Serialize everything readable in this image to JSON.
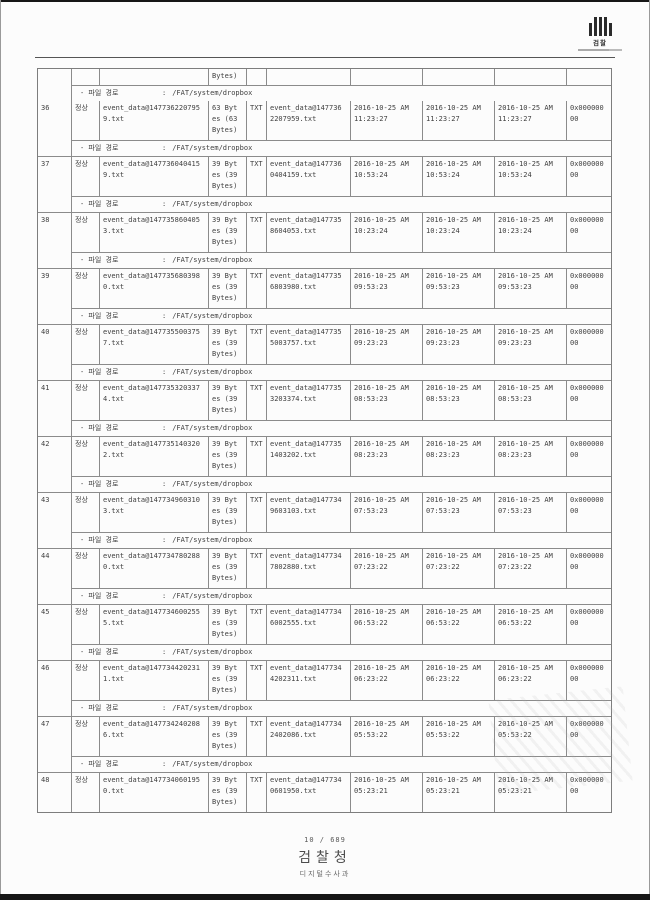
{
  "page": {
    "logo": {
      "label": "검찰"
    },
    "footer": {
      "page_number": "10 / 689",
      "organization": "검찰청",
      "department": "디지털수사과"
    }
  },
  "table": {
    "path_label": "- 파일 경로",
    "path_separator": ":",
    "continuation": {
      "size_fragment": "Bytes)",
      "path": "/FAT/system/dropbox"
    },
    "rows": [
      {
        "no": "36",
        "status": "정상",
        "file_name": "event_data@1477362207959.txt",
        "size": "63 Bytes (63 Bytes)",
        "type": "TXT",
        "original_name": "event_data@1477362207959.txt",
        "timestamp1": "2016-10-25 AM 11:23:27",
        "timestamp2": "2016-10-25 AM 11:23:27",
        "timestamp3": "2016-10-25 AM 11:23:27",
        "attribute": "0x00000000",
        "path": "/FAT/system/dropbox"
      },
      {
        "no": "37",
        "status": "정상",
        "file_name": "event_data@1477360404159.txt",
        "size": "39 Bytes (39 Bytes)",
        "type": "TXT",
        "original_name": "event_data@1477360404159.txt",
        "timestamp1": "2016-10-25 AM 10:53:24",
        "timestamp2": "2016-10-25 AM 10:53:24",
        "timestamp3": "2016-10-25 AM 10:53:24",
        "attribute": "0x00000000",
        "path": "/FAT/system/dropbox"
      },
      {
        "no": "38",
        "status": "정상",
        "file_name": "event_data@1477358604053.txt",
        "size": "39 Bytes (39 Bytes)",
        "type": "TXT",
        "original_name": "event_data@1477358604053.txt",
        "timestamp1": "2016-10-25 AM 10:23:24",
        "timestamp2": "2016-10-25 AM 10:23:24",
        "timestamp3": "2016-10-25 AM 10:23:24",
        "attribute": "0x00000000",
        "path": "/FAT/system/dropbox"
      },
      {
        "no": "39",
        "status": "정상",
        "file_name": "event_data@1477356803980.txt",
        "size": "39 Bytes (39 Bytes)",
        "type": "TXT",
        "original_name": "event_data@1477356803980.txt",
        "timestamp1": "2016-10-25 AM 09:53:23",
        "timestamp2": "2016-10-25 AM 09:53:23",
        "timestamp3": "2016-10-25 AM 09:53:23",
        "attribute": "0x00000000",
        "path": "/FAT/system/dropbox"
      },
      {
        "no": "40",
        "status": "정상",
        "file_name": "event_data@1477355003757.txt",
        "size": "39 Bytes (39 Bytes)",
        "type": "TXT",
        "original_name": "event_data@1477355003757.txt",
        "timestamp1": "2016-10-25 AM 09:23:23",
        "timestamp2": "2016-10-25 AM 09:23:23",
        "timestamp3": "2016-10-25 AM 09:23:23",
        "attribute": "0x00000000",
        "path": "/FAT/system/dropbox"
      },
      {
        "no": "41",
        "status": "정상",
        "file_name": "event_data@1477353203374.txt",
        "size": "39 Bytes (39 Bytes)",
        "type": "TXT",
        "original_name": "event_data@1477353203374.txt",
        "timestamp1": "2016-10-25 AM 08:53:23",
        "timestamp2": "2016-10-25 AM 08:53:23",
        "timestamp3": "2016-10-25 AM 08:53:23",
        "attribute": "0x00000000",
        "path": "/FAT/system/dropbox"
      },
      {
        "no": "42",
        "status": "정상",
        "file_name": "event_data@1477351403202.txt",
        "size": "39 Bytes (39 Bytes)",
        "type": "TXT",
        "original_name": "event_data@1477351403202.txt",
        "timestamp1": "2016-10-25 AM 08:23:23",
        "timestamp2": "2016-10-25 AM 08:23:23",
        "timestamp3": "2016-10-25 AM 08:23:23",
        "attribute": "0x00000000",
        "path": "/FAT/system/dropbox"
      },
      {
        "no": "43",
        "status": "정상",
        "file_name": "event_data@1477349603103.txt",
        "size": "39 Bytes (39 Bytes)",
        "type": "TXT",
        "original_name": "event_data@1477349603103.txt",
        "timestamp1": "2016-10-25 AM 07:53:23",
        "timestamp2": "2016-10-25 AM 07:53:23",
        "timestamp3": "2016-10-25 AM 07:53:23",
        "attribute": "0x00000000",
        "path": "/FAT/system/dropbox"
      },
      {
        "no": "44",
        "status": "정상",
        "file_name": "event_data@1477347802880.txt",
        "size": "39 Bytes (39 Bytes)",
        "type": "TXT",
        "original_name": "event_data@1477347802880.txt",
        "timestamp1": "2016-10-25 AM 07:23:22",
        "timestamp2": "2016-10-25 AM 07:23:22",
        "timestamp3": "2016-10-25 AM 07:23:22",
        "attribute": "0x00000000",
        "path": "/FAT/system/dropbox"
      },
      {
        "no": "45",
        "status": "정상",
        "file_name": "event_data@1477346002555.txt",
        "size": "39 Bytes (39 Bytes)",
        "type": "TXT",
        "original_name": "event_data@1477346002555.txt",
        "timestamp1": "2016-10-25 AM 06:53:22",
        "timestamp2": "2016-10-25 AM 06:53:22",
        "timestamp3": "2016-10-25 AM 06:53:22",
        "attribute": "0x00000000",
        "path": "/FAT/system/dropbox"
      },
      {
        "no": "46",
        "status": "정상",
        "file_name": "event_data@1477344202311.txt",
        "size": "39 Bytes (39 Bytes)",
        "type": "TXT",
        "original_name": "event_data@1477344202311.txt",
        "timestamp1": "2016-10-25 AM 06:23:22",
        "timestamp2": "2016-10-25 AM 06:23:22",
        "timestamp3": "2016-10-25 AM 06:23:22",
        "attribute": "0x00000000",
        "path": "/FAT/system/dropbox"
      },
      {
        "no": "47",
        "status": "정상",
        "file_name": "event_data@1477342402086.txt",
        "size": "39 Bytes (39 Bytes)",
        "type": "TXT",
        "original_name": "event_data@1477342402086.txt",
        "timestamp1": "2016-10-25 AM 05:53:22",
        "timestamp2": "2016-10-25 AM 05:53:22",
        "timestamp3": "2016-10-25 AM 05:53:22",
        "attribute": "0x00000000",
        "path": "/FAT/system/dropbox"
      },
      {
        "no": "48",
        "status": "정상",
        "file_name": "event_data@1477340601950.txt",
        "size": "39 Bytes (39 Bytes)",
        "type": "TXT",
        "original_name": "event_data@1477340601950.txt",
        "timestamp1": "2016-10-25 AM 05:23:21",
        "timestamp2": "2016-10-25 AM 05:23:21",
        "timestamp3": "2016-10-25 AM 05:23:21",
        "attribute": "0x00000000",
        "path": null
      }
    ]
  }
}
